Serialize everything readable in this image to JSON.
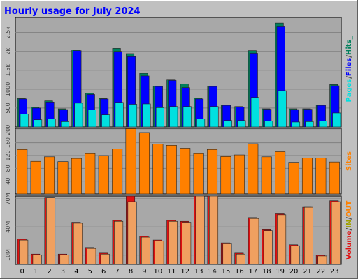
{
  "title": "Hourly usage for July 2024",
  "colors": {
    "background": "#c0c0c0",
    "plot_background": "#a8a8a8",
    "title": "#0000ff",
    "hits": "#00805c",
    "files": "#0000ff",
    "pages": "#00e0e0",
    "sites": "#ff8000",
    "volume_in": "#e01010",
    "volume_out": "#f0a060"
  },
  "chart_data": [
    {
      "type": "bar",
      "id": "pages-files-hits",
      "categories": [
        "0",
        "1",
        "2",
        "3",
        "4",
        "5",
        "6",
        "7",
        "8",
        "9",
        "10",
        "11",
        "12",
        "13",
        "14",
        "15",
        "16",
        "17",
        "18",
        "19",
        "20",
        "21",
        "22",
        "23"
      ],
      "ylim": [
        0,
        2900
      ],
      "yticks": [
        500,
        1000,
        1500,
        2000,
        2500
      ],
      "ytick_labels": [
        "500",
        "1000",
        "1.5k",
        "2k",
        "2.5k"
      ],
      "series": [
        {
          "name": "Hits",
          "values": [
            750,
            520,
            690,
            480,
            2040,
            890,
            750,
            2080,
            1940,
            1420,
            1080,
            1260,
            1140,
            760,
            1080,
            580,
            540,
            2020,
            480,
            2750,
            480,
            480,
            580,
            1120
          ]
        },
        {
          "name": "Files",
          "values": [
            740,
            500,
            660,
            460,
            2020,
            860,
            740,
            2000,
            1860,
            1350,
            1070,
            1230,
            1040,
            740,
            1070,
            570,
            530,
            1950,
            470,
            2670,
            460,
            470,
            570,
            1090
          ]
        },
        {
          "name": "Pages",
          "values": [
            340,
            190,
            210,
            140,
            630,
            450,
            320,
            650,
            600,
            610,
            510,
            540,
            540,
            210,
            540,
            170,
            170,
            780,
            160,
            960,
            130,
            140,
            160,
            370
          ]
        }
      ],
      "legend_labels": [
        "Pages",
        "Files",
        "Hits"
      ],
      "legend_separators": [
        "/",
        "/"
      ],
      "legend_trailer": "_"
    },
    {
      "type": "bar",
      "id": "sites",
      "categories": [
        "0",
        "1",
        "2",
        "3",
        "4",
        "5",
        "6",
        "7",
        "8",
        "9",
        "10",
        "11",
        "12",
        "13",
        "14",
        "15",
        "16",
        "17",
        "18",
        "19",
        "20",
        "21",
        "22",
        "23"
      ],
      "ylim": [
        0,
        205
      ],
      "yticks": [
        40,
        80,
        120,
        160,
        200
      ],
      "ytick_labels": [
        "40",
        "80",
        "120",
        "160",
        "200"
      ],
      "series": [
        {
          "name": "Sites",
          "values": [
            139,
            102,
            116,
            101,
            111,
            126,
            120,
            141,
            204,
            192,
            156,
            152,
            143,
            126,
            139,
            117,
            122,
            157,
            116,
            132,
            99,
            112,
            112,
            100
          ]
        }
      ],
      "legend_labels": [
        "Sites"
      ]
    },
    {
      "type": "bar",
      "id": "volume",
      "categories": [
        "0",
        "1",
        "2",
        "3",
        "4",
        "5",
        "6",
        "7",
        "8",
        "9",
        "10",
        "11",
        "12",
        "13",
        "14",
        "15",
        "16",
        "17",
        "18",
        "19",
        "20",
        "21",
        "22",
        "23"
      ],
      "ylim": [
        0,
        73
      ],
      "yticks": [
        10,
        40,
        70
      ],
      "ytick_labels": [
        "10M",
        "40M",
        "70M"
      ],
      "series": [
        {
          "name": "IN",
          "values": [
            27,
            11,
            71,
            11,
            45,
            18,
            12,
            47,
            81,
            30,
            26,
            47,
            46,
            75,
            78,
            23,
            12,
            50,
            37,
            54,
            21,
            61,
            10,
            68
          ]
        },
        {
          "name": "OUT",
          "values": [
            26,
            10,
            71,
            10,
            44,
            17,
            11,
            46,
            67,
            29,
            25,
            46,
            45,
            74,
            78,
            22,
            11,
            49,
            36,
            53,
            20,
            61,
            9,
            67
          ]
        }
      ],
      "legend_labels": [
        "Volume",
        "IN",
        "OUT"
      ],
      "legend_separators": [
        "/",
        "/"
      ]
    }
  ]
}
